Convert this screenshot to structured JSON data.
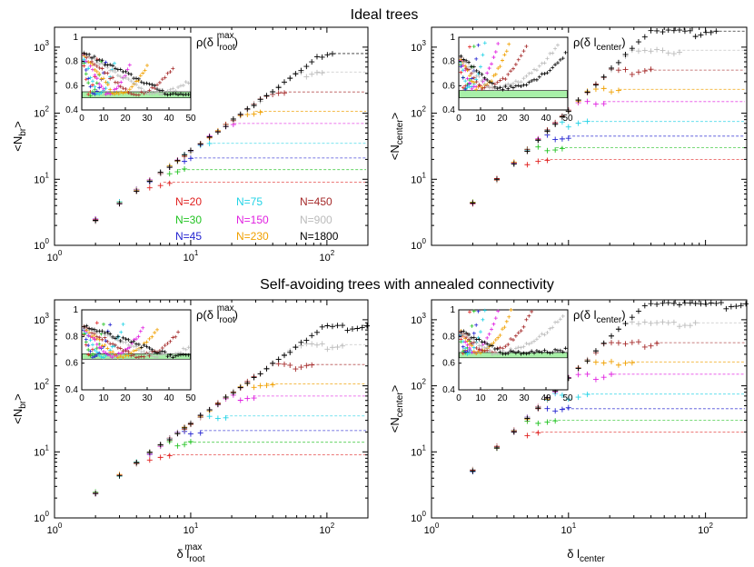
{
  "figure": {
    "title_top": "Ideal trees",
    "title_bottom": "Self-avoiding trees with annealed connectivity",
    "xlabel_left": "δ l",
    "xlabel_left_sub": "root",
    "xlabel_left_sup": "max",
    "xlabel_right": "δ l",
    "xlabel_right_sub": "center"
  },
  "legend": {
    "entries": [
      {
        "label": "N=20",
        "color": "#e0201f"
      },
      {
        "label": "N=75",
        "color": "#22d3e6"
      },
      {
        "label": "N=450",
        "color": "#a52a2a"
      },
      {
        "label": "N=30",
        "color": "#22c322"
      },
      {
        "label": "N=150",
        "color": "#e020e0"
      },
      {
        "label": "N=900",
        "color": "#bbbbbb"
      },
      {
        "label": "N=45",
        "color": "#2222d0"
      },
      {
        "label": "N=230",
        "color": "#f0a000"
      },
      {
        "label": "N=1800",
        "color": "#000000"
      }
    ]
  },
  "colors": {
    "inset_band": "#a8f0a8"
  },
  "chart_data": [
    {
      "type": "scatter",
      "panel": "top-left",
      "ylabel": "<N",
      "ylabel_sub": "br",
      "ylabel_tail": ">",
      "xscale": "log",
      "yscale": "log",
      "xlim": [
        1,
        200
      ],
      "ylim": [
        1,
        2000
      ],
      "x_tick_labels": [
        "10^0",
        "10^1",
        "10^2"
      ],
      "y_tick_labels": [
        "10^0",
        "10^1",
        "10^2",
        "10^3"
      ],
      "series": [
        {
          "name": "N=20",
          "slope": 1.5,
          "prefactor": 0.85,
          "plateau": 9,
          "xmax": 7
        },
        {
          "name": "N=30",
          "slope": 1.5,
          "prefactor": 0.85,
          "plateau": 14,
          "xmax": 9
        },
        {
          "name": "N=45",
          "slope": 1.5,
          "prefactor": 0.85,
          "plateau": 21,
          "xmax": 11
        },
        {
          "name": "N=75",
          "slope": 1.5,
          "prefactor": 0.85,
          "plateau": 35,
          "xmax": 15
        },
        {
          "name": "N=150",
          "slope": 1.5,
          "prefactor": 0.85,
          "plateau": 70,
          "xmax": 23
        },
        {
          "name": "N=230",
          "slope": 1.5,
          "prefactor": 0.85,
          "plateau": 107,
          "xmax": 33
        },
        {
          "name": "N=450",
          "slope": 1.5,
          "prefactor": 0.85,
          "plateau": 210,
          "xmax": 50
        },
        {
          "name": "N=900",
          "slope": 1.5,
          "prefactor": 0.85,
          "plateau": 420,
          "xmax": 95
        },
        {
          "name": "N=1800",
          "slope": 1.5,
          "prefactor": 0.85,
          "plateau": 800,
          "xmax": 115
        }
      ],
      "inset": {
        "label": "ρ(δ l",
        "label_sub": "root",
        "label_sup": "max",
        "label_tail": ")",
        "xlim": [
          0,
          50
        ],
        "ylim": [
          0.4,
          1.0
        ],
        "x_ticks": [
          0,
          10,
          20,
          30,
          40,
          50
        ],
        "y_ticks": [
          0.4,
          0.6,
          0.8,
          1
        ],
        "band": [
          0.5,
          0.55
        ],
        "curves": [
          {
            "name": "N=20",
            "minx": 3,
            "end": 7,
            "rise": 0.3
          },
          {
            "name": "N=30",
            "minx": 4,
            "end": 9,
            "rise": 0.28
          },
          {
            "name": "N=45",
            "minx": 5,
            "end": 11,
            "rise": 0.27
          },
          {
            "name": "N=75",
            "minx": 7,
            "end": 15,
            "rise": 0.26
          },
          {
            "name": "N=150",
            "minx": 11,
            "end": 22,
            "rise": 0.25
          },
          {
            "name": "N=230",
            "minx": 15,
            "end": 30,
            "rise": 0.24
          },
          {
            "name": "N=450",
            "minx": 22,
            "end": 42,
            "rise": 0.22
          },
          {
            "name": "N=900",
            "minx": 32,
            "end": 50,
            "rise": 0.12
          },
          {
            "name": "N=1800",
            "minx": 40,
            "end": 50,
            "rise": 0.0
          }
        ],
        "min_level": 0.53,
        "start_level": 0.88
      }
    },
    {
      "type": "scatter",
      "panel": "top-right",
      "ylabel": "<N",
      "ylabel_sub": "center",
      "ylabel_tail": ">",
      "xscale": "log",
      "yscale": "log",
      "xlim": [
        1,
        200
      ],
      "ylim": [
        1,
        2000
      ],
      "y_tick_labels": [
        "10^0",
        "10^1",
        "10^2",
        "10^3"
      ],
      "series": [
        {
          "name": "N=20",
          "slope": 2.0,
          "prefactor": 1.1,
          "plateau": 20,
          "xmax": 7
        },
        {
          "name": "N=30",
          "slope": 2.0,
          "prefactor": 1.1,
          "plateau": 30,
          "xmax": 9
        },
        {
          "name": "N=45",
          "slope": 2.0,
          "prefactor": 1.1,
          "plateau": 45,
          "xmax": 11
        },
        {
          "name": "N=75",
          "slope": 2.0,
          "prefactor": 1.1,
          "plateau": 75,
          "xmax": 14
        },
        {
          "name": "N=150",
          "slope": 2.0,
          "prefactor": 1.1,
          "plateau": 150,
          "xmax": 20
        },
        {
          "name": "N=230",
          "slope": 2.0,
          "prefactor": 1.1,
          "plateau": 230,
          "xmax": 26
        },
        {
          "name": "N=450",
          "slope": 2.0,
          "prefactor": 1.1,
          "plateau": 450,
          "xmax": 40
        },
        {
          "name": "N=900",
          "slope": 2.0,
          "prefactor": 1.1,
          "plateau": 900,
          "xmax": 70
        },
        {
          "name": "N=1800",
          "slope": 2.0,
          "prefactor": 1.1,
          "plateau": 1750,
          "xmax": 120
        }
      ],
      "inset": {
        "label": "ρ(δ l",
        "label_sub": "center",
        "label_sup": "",
        "label_tail": ")",
        "xlim": [
          0,
          50
        ],
        "ylim": [
          0.4,
          1.0
        ],
        "x_ticks": [
          0,
          10,
          20,
          30,
          40,
          50
        ],
        "y_ticks": [
          0.4,
          0.6,
          0.8,
          1
        ],
        "band": [
          0.5,
          0.56
        ],
        "curves": [
          {
            "name": "N=20",
            "minx": 2,
            "end": 5,
            "rise": 0.35
          },
          {
            "name": "N=30",
            "minx": 3,
            "end": 7,
            "rise": 0.35
          },
          {
            "name": "N=45",
            "minx": 3,
            "end": 9,
            "rise": 0.36
          },
          {
            "name": "N=75",
            "minx": 4,
            "end": 12,
            "rise": 0.36
          },
          {
            "name": "N=150",
            "minx": 6,
            "end": 18,
            "rise": 0.37
          },
          {
            "name": "N=230",
            "minx": 8,
            "end": 23,
            "rise": 0.37
          },
          {
            "name": "N=450",
            "minx": 10,
            "end": 32,
            "rise": 0.37
          },
          {
            "name": "N=900",
            "minx": 14,
            "end": 46,
            "rise": 0.37
          },
          {
            "name": "N=1800",
            "minx": 18,
            "end": 50,
            "rise": 0.3
          }
        ],
        "min_level": 0.58,
        "start_level": 0.85
      }
    },
    {
      "type": "scatter",
      "panel": "bottom-left",
      "ylabel": "<N",
      "ylabel_sub": "br",
      "ylabel_tail": ">",
      "xscale": "log",
      "yscale": "log",
      "xlim": [
        1,
        200
      ],
      "ylim": [
        1,
        2000
      ],
      "x_tick_labels": [
        "10^0",
        "10^1",
        "10^2"
      ],
      "y_tick_labels": [
        "10^0",
        "10^1",
        "10^2",
        "10^3"
      ],
      "series": [
        {
          "name": "N=20",
          "slope": 1.5,
          "prefactor": 0.85,
          "plateau": 9,
          "xmax": 7
        },
        {
          "name": "N=30",
          "slope": 1.5,
          "prefactor": 0.85,
          "plateau": 14,
          "xmax": 10
        },
        {
          "name": "N=45",
          "slope": 1.5,
          "prefactor": 0.85,
          "plateau": 21,
          "xmax": 13
        },
        {
          "name": "N=75",
          "slope": 1.5,
          "prefactor": 0.85,
          "plateau": 35,
          "xmax": 20
        },
        {
          "name": "N=150",
          "slope": 1.5,
          "prefactor": 0.85,
          "plateau": 70,
          "xmax": 32
        },
        {
          "name": "N=230",
          "slope": 1.5,
          "prefactor": 0.85,
          "plateau": 107,
          "xmax": 40
        },
        {
          "name": "N=450",
          "slope": 1.5,
          "prefactor": 0.85,
          "plateau": 210,
          "xmax": 80
        },
        {
          "name": "N=900",
          "slope": 1.5,
          "prefactor": 0.85,
          "plateau": 420,
          "xmax": 140
        },
        {
          "name": "N=1800",
          "slope": 1.5,
          "prefactor": 0.85,
          "plateau": 820,
          "xmax": 200
        }
      ],
      "inset": {
        "label": "ρ(δ l",
        "label_sub": "root",
        "label_sup": "max",
        "label_tail": ")",
        "xlim": [
          0,
          50
        ],
        "ylim": [
          0.4,
          1.0
        ],
        "x_ticks": [
          0,
          10,
          20,
          30,
          40,
          50
        ],
        "y_ticks": [
          0.4,
          0.6,
          0.8,
          1
        ],
        "band": [
          0.63,
          0.67
        ],
        "curves": [
          {
            "name": "N=20",
            "minx": 3,
            "end": 7,
            "rise": 0.25
          },
          {
            "name": "N=30",
            "minx": 4,
            "end": 10,
            "rise": 0.25
          },
          {
            "name": "N=45",
            "minx": 5,
            "end": 13,
            "rise": 0.24
          },
          {
            "name": "N=75",
            "minx": 8,
            "end": 19,
            "rise": 0.24
          },
          {
            "name": "N=150",
            "minx": 12,
            "end": 28,
            "rise": 0.22
          },
          {
            "name": "N=230",
            "minx": 16,
            "end": 35,
            "rise": 0.22
          },
          {
            "name": "N=450",
            "minx": 24,
            "end": 45,
            "rise": 0.2
          },
          {
            "name": "N=900",
            "minx": 34,
            "end": 50,
            "rise": 0.08
          },
          {
            "name": "N=1800",
            "minx": 42,
            "end": 50,
            "rise": 0.0
          }
        ],
        "min_level": 0.65,
        "start_level": 0.88
      }
    },
    {
      "type": "scatter",
      "panel": "bottom-right",
      "ylabel": "<N",
      "ylabel_sub": "center",
      "ylabel_tail": ">",
      "xscale": "log",
      "yscale": "log",
      "xlim": [
        1,
        200
      ],
      "ylim": [
        1,
        2000
      ],
      "x_tick_labels": [
        "10^0",
        "10^1",
        "10^2"
      ],
      "y_tick_labels": [
        "10^0",
        "10^1",
        "10^2",
        "10^3"
      ],
      "series": [
        {
          "name": "N=20",
          "slope": 2.0,
          "prefactor": 1.3,
          "plateau": 20,
          "xmax": 6
        },
        {
          "name": "N=30",
          "slope": 2.0,
          "prefactor": 1.3,
          "plateau": 30,
          "xmax": 8
        },
        {
          "name": "N=45",
          "slope": 2.0,
          "prefactor": 1.3,
          "plateau": 45,
          "xmax": 10
        },
        {
          "name": "N=75",
          "slope": 2.0,
          "prefactor": 1.3,
          "plateau": 75,
          "xmax": 14
        },
        {
          "name": "N=150",
          "slope": 2.0,
          "prefactor": 1.3,
          "plateau": 150,
          "xmax": 22
        },
        {
          "name": "N=230",
          "slope": 2.0,
          "prefactor": 1.3,
          "plateau": 230,
          "xmax": 30
        },
        {
          "name": "N=450",
          "slope": 2.0,
          "prefactor": 1.3,
          "plateau": 450,
          "xmax": 48
        },
        {
          "name": "N=900",
          "slope": 2.0,
          "prefactor": 1.3,
          "plateau": 900,
          "xmax": 90
        },
        {
          "name": "N=1800",
          "slope": 2.0,
          "prefactor": 1.3,
          "plateau": 1750,
          "xmax": 200
        }
      ],
      "inset": {
        "label": "ρ(δ l",
        "label_sub": "center",
        "label_sup": "",
        "label_tail": ")",
        "xlim": [
          0,
          50
        ],
        "ylim": [
          0.4,
          1.0
        ],
        "x_ticks": [
          0,
          10,
          20,
          30,
          40,
          50
        ],
        "y_ticks": [
          0.4,
          0.6,
          0.8,
          1
        ],
        "band": [
          0.64,
          0.68
        ],
        "curves": [
          {
            "name": "N=20",
            "minx": 2,
            "end": 5,
            "rise": 0.3
          },
          {
            "name": "N=30",
            "minx": 2,
            "end": 7,
            "rise": 0.3
          },
          {
            "name": "N=45",
            "minx": 3,
            "end": 9,
            "rise": 0.32
          },
          {
            "name": "N=75",
            "minx": 4,
            "end": 12,
            "rise": 0.32
          },
          {
            "name": "N=150",
            "minx": 6,
            "end": 18,
            "rise": 0.32
          },
          {
            "name": "N=230",
            "minx": 8,
            "end": 24,
            "rise": 0.32
          },
          {
            "name": "N=450",
            "minx": 11,
            "end": 34,
            "rise": 0.32
          },
          {
            "name": "N=900",
            "minx": 15,
            "end": 48,
            "rise": 0.28
          },
          {
            "name": "N=1800",
            "minx": 20,
            "end": 50,
            "rise": 0.02
          }
        ],
        "min_level": 0.68,
        "start_level": 0.85
      }
    }
  ]
}
